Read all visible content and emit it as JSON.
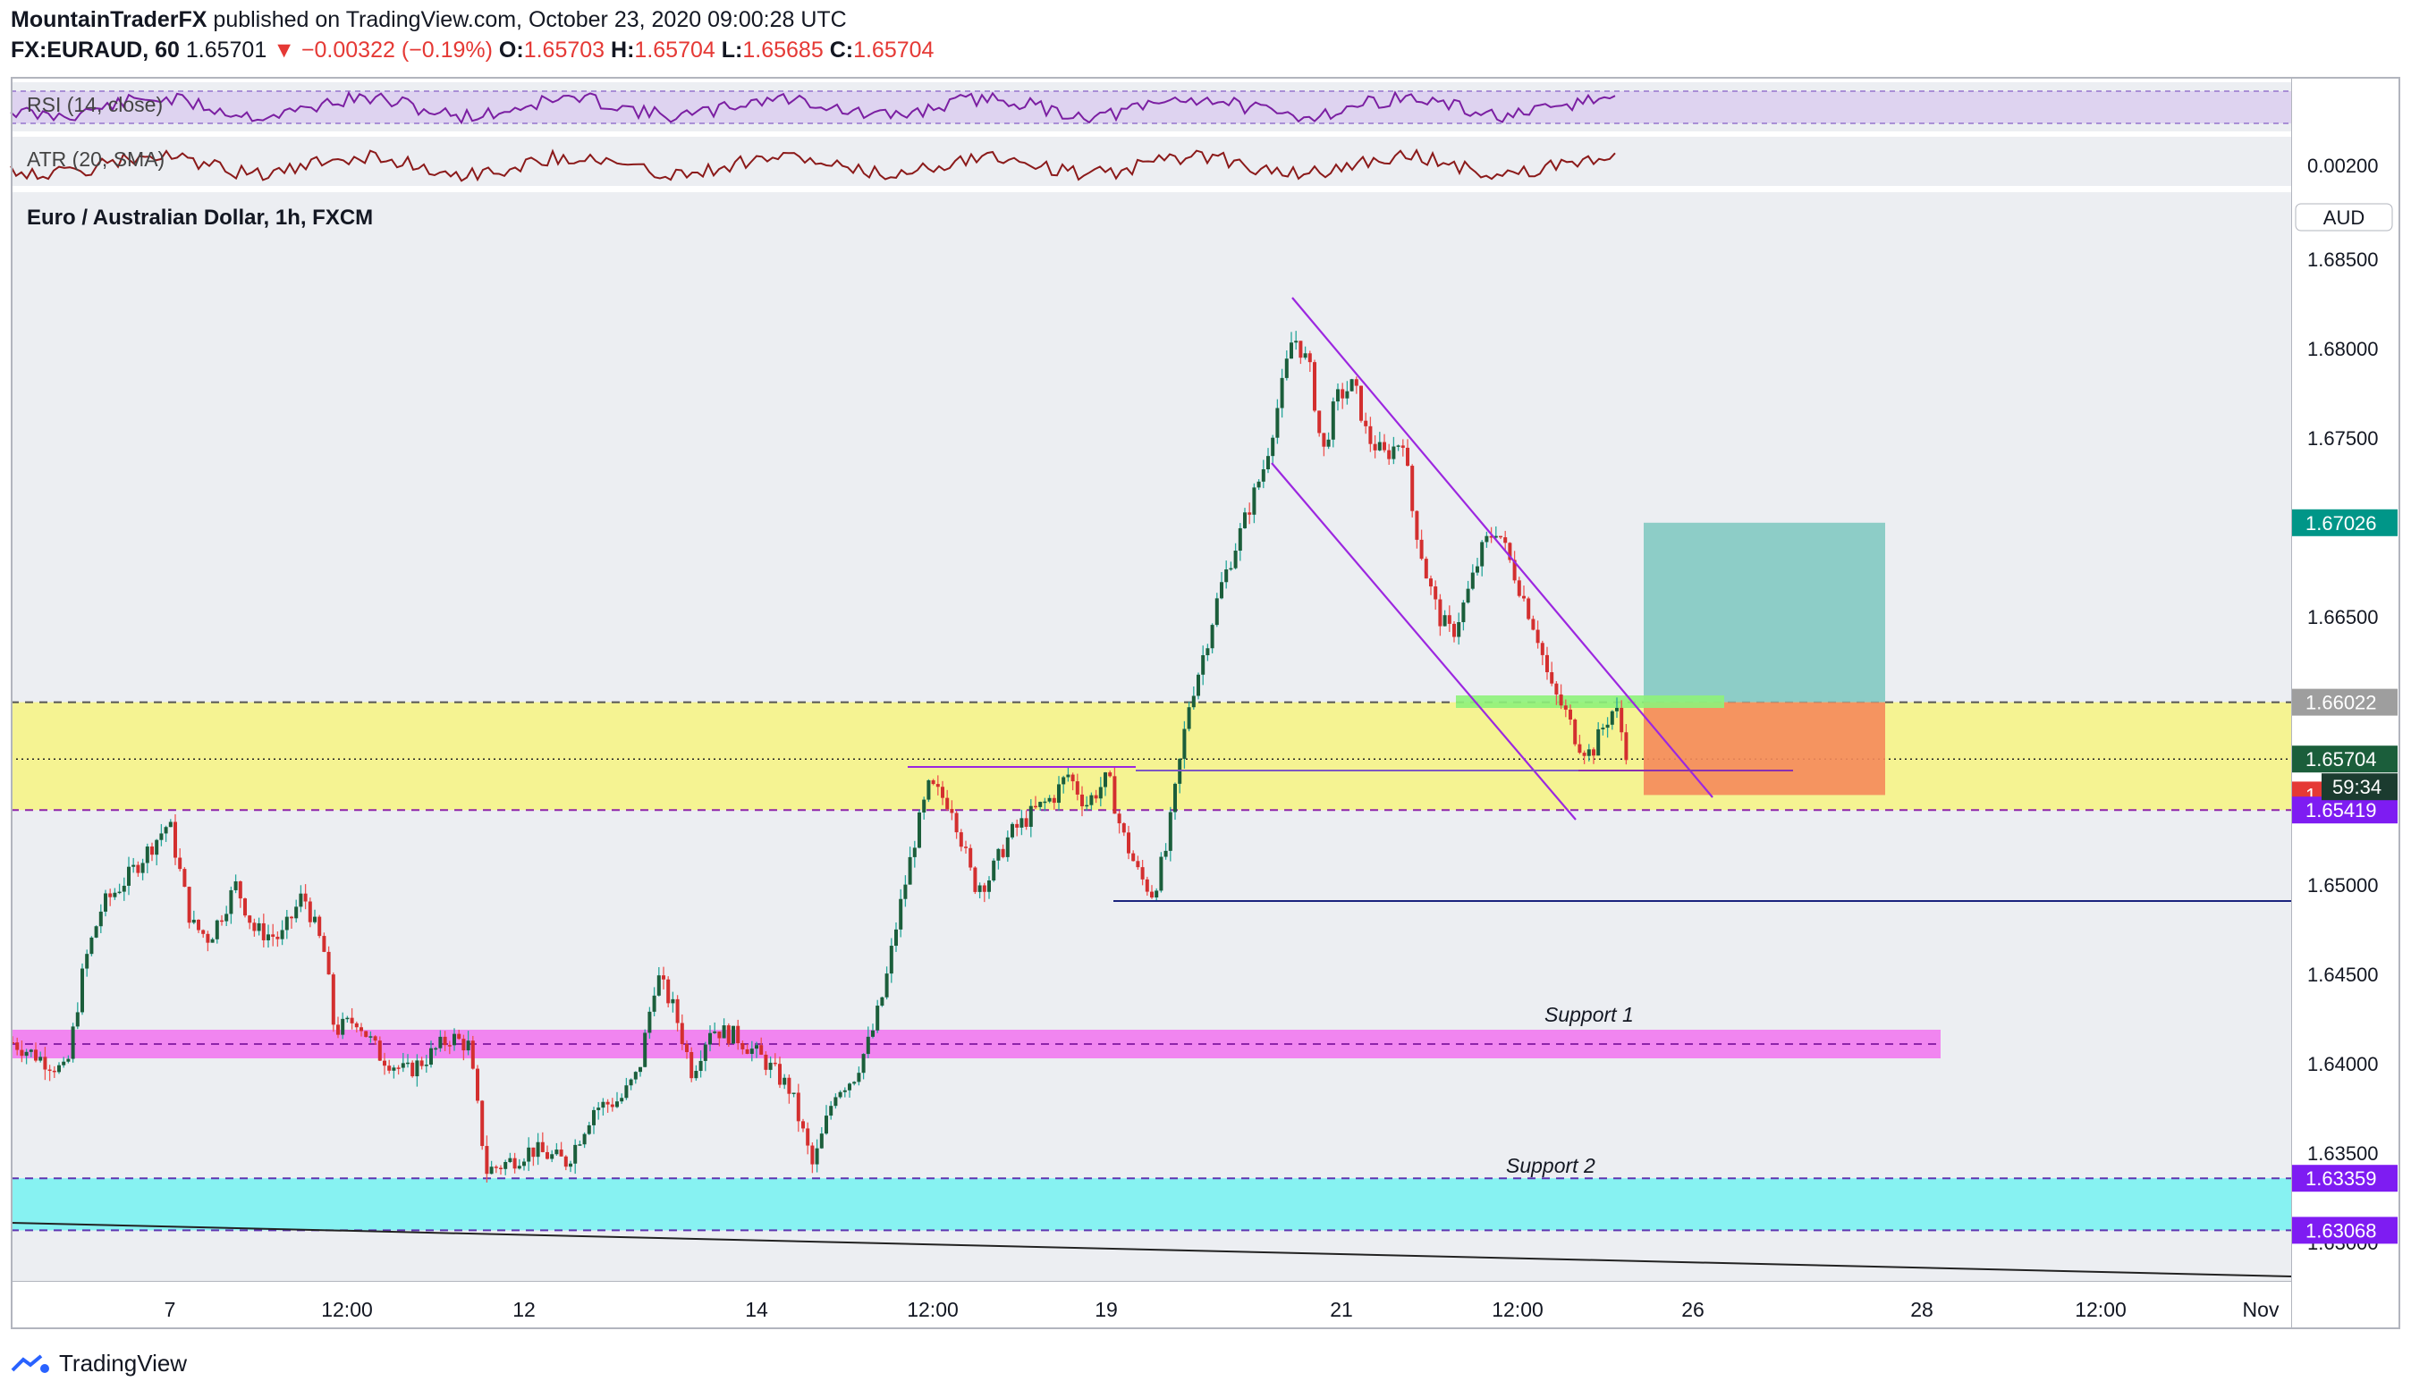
{
  "header": {
    "author": "MountainTraderFX",
    "published": " published on TradingView.com, October 23, 2020 09:00:28 UTC",
    "symbol": "FX:EURAUD, 60",
    "last": "1.65701",
    "change": "−0.00322 (−0.19%)",
    "o_label": "O:",
    "o": "1.65703",
    "h_label": "H:",
    "h": "1.65704",
    "l_label": "L:",
    "l": "1.65685",
    "c_label": "C:",
    "c": "1.65704"
  },
  "indicators": {
    "rsi_label": "RSI (14, close)",
    "atr_label": "ATR (20, SMA)",
    "atr_value": "0.00200"
  },
  "main_title": "Euro / Australian Dollar, 1h, FXCM",
  "currency": "AUD",
  "annotations": {
    "support1": "Support 1",
    "support2": "Support 2",
    "countdown": "59:34"
  },
  "footer": {
    "brand": "TradingView"
  },
  "colors": {
    "up": "#26a69a",
    "down": "#ef5350",
    "bull_body": "#1b5e3b",
    "bear_body": "#d32f2f",
    "yellow_zone": "#f5f38a",
    "magenta_zone": "#f17cf0",
    "cyan_zone": "#7ef2f2",
    "channel": "#9c27e0",
    "target": "#7cc7bf",
    "stop": "#f58a5b"
  },
  "chart_data": {
    "type": "candlestick",
    "symbol": "EURAUD",
    "timeframe": "1h",
    "ylim": [
      1.627,
      1.6885
    ],
    "y_ticks": [
      "1.68500",
      "1.68000",
      "1.67500",
      "1.66500",
      "1.65000",
      "1.64500",
      "1.64000",
      "1.63500",
      "1.63000"
    ],
    "x_ticks": [
      "7",
      "12:00",
      "12",
      "14",
      "12:00",
      "19",
      "21",
      "12:00",
      "26",
      "28",
      "12:00",
      "Nov"
    ],
    "price_badges": [
      {
        "label": "1.67026",
        "value": 1.67026,
        "color": "#009688"
      },
      {
        "label": "1.66022",
        "value": 1.66022,
        "color": "#9e9e9e"
      },
      {
        "label": "1.65704",
        "value": 1.65704,
        "color": "#1b5e3b"
      },
      {
        "label": "1.65503",
        "value": 1.65503,
        "color": "#e53935"
      },
      {
        "label": "1.65419",
        "value": 1.65419,
        "color": "#7e1cf2"
      },
      {
        "label": "1.63359",
        "value": 1.63359,
        "color": "#7e1cf2"
      },
      {
        "label": "1.63068",
        "value": 1.63068,
        "color": "#7e1cf2"
      }
    ],
    "zones": [
      {
        "name": "resistance-zone",
        "from": 1.65419,
        "to": 1.66022
      },
      {
        "name": "support-1-zone",
        "from": 1.6403,
        "to": 1.6419
      },
      {
        "name": "support-2-zone",
        "from": 1.63068,
        "to": 1.63359
      }
    ],
    "position": {
      "entry": 1.66022,
      "target": 1.67026,
      "stop": 1.65503
    },
    "path_points": [
      [
        0,
        1.6412
      ],
      [
        60,
        1.6395
      ],
      [
        80,
        1.6455
      ],
      [
        100,
        1.6488
      ],
      [
        130,
        1.6505
      ],
      [
        160,
        1.6525
      ],
      [
        175,
        1.6535
      ],
      [
        200,
        1.6478
      ],
      [
        220,
        1.647
      ],
      [
        250,
        1.65
      ],
      [
        270,
        1.6475
      ],
      [
        300,
        1.647
      ],
      [
        325,
        1.6495
      ],
      [
        350,
        1.646
      ],
      [
        360,
        1.6418
      ],
      [
        385,
        1.6425
      ],
      [
        410,
        1.6405
      ],
      [
        440,
        1.6395
      ],
      [
        460,
        1.6402
      ],
      [
        490,
        1.6415
      ],
      [
        510,
        1.641
      ],
      [
        530,
        1.634
      ],
      [
        555,
        1.6345
      ],
      [
        580,
        1.6352
      ],
      [
        620,
        1.6345
      ],
      [
        650,
        1.6375
      ],
      [
        680,
        1.638
      ],
      [
        700,
        1.6395
      ],
      [
        720,
        1.645
      ],
      [
        740,
        1.643
      ],
      [
        760,
        1.6395
      ],
      [
        780,
        1.642
      ],
      [
        810,
        1.6415
      ],
      [
        840,
        1.6402
      ],
      [
        870,
        1.6385
      ],
      [
        895,
        1.6342
      ],
      [
        920,
        1.6385
      ],
      [
        940,
        1.6392
      ],
      [
        960,
        1.6415
      ],
      [
        975,
        1.6442
      ],
      [
        990,
        1.6482
      ],
      [
        1010,
        1.6528
      ],
      [
        1025,
        1.6555
      ],
      [
        1050,
        1.6545
      ],
      [
        1075,
        1.65
      ],
      [
        1090,
        1.6502
      ],
      [
        1115,
        1.6528
      ],
      [
        1140,
        1.654
      ],
      [
        1165,
        1.655
      ],
      [
        1180,
        1.6562
      ],
      [
        1200,
        1.6545
      ],
      [
        1225,
        1.656
      ],
      [
        1240,
        1.653
      ],
      [
        1260,
        1.6505
      ],
      [
        1275,
        1.6495
      ],
      [
        1290,
        1.652
      ],
      [
        1300,
        1.6552
      ],
      [
        1315,
        1.66
      ],
      [
        1335,
        1.6635
      ],
      [
        1350,
        1.6665
      ],
      [
        1375,
        1.67
      ],
      [
        1400,
        1.6735
      ],
      [
        1418,
        1.6775
      ],
      [
        1432,
        1.6808
      ],
      [
        1450,
        1.679
      ],
      [
        1465,
        1.674
      ],
      [
        1480,
        1.6772
      ],
      [
        1500,
        1.678
      ],
      [
        1515,
        1.675
      ],
      [
        1535,
        1.674
      ],
      [
        1555,
        1.675
      ],
      [
        1565,
        1.671
      ],
      [
        1580,
        1.6675
      ],
      [
        1595,
        1.665
      ],
      [
        1610,
        1.664
      ],
      [
        1625,
        1.666
      ],
      [
        1645,
        1.669
      ],
      [
        1660,
        1.67
      ],
      [
        1675,
        1.668
      ],
      [
        1690,
        1.666
      ],
      [
        1705,
        1.664
      ],
      [
        1720,
        1.661
      ],
      [
        1735,
        1.6598
      ],
      [
        1750,
        1.658
      ],
      [
        1765,
        1.6573
      ],
      [
        1780,
        1.659
      ],
      [
        1792,
        1.66
      ],
      [
        1806,
        1.6572
      ]
    ]
  }
}
